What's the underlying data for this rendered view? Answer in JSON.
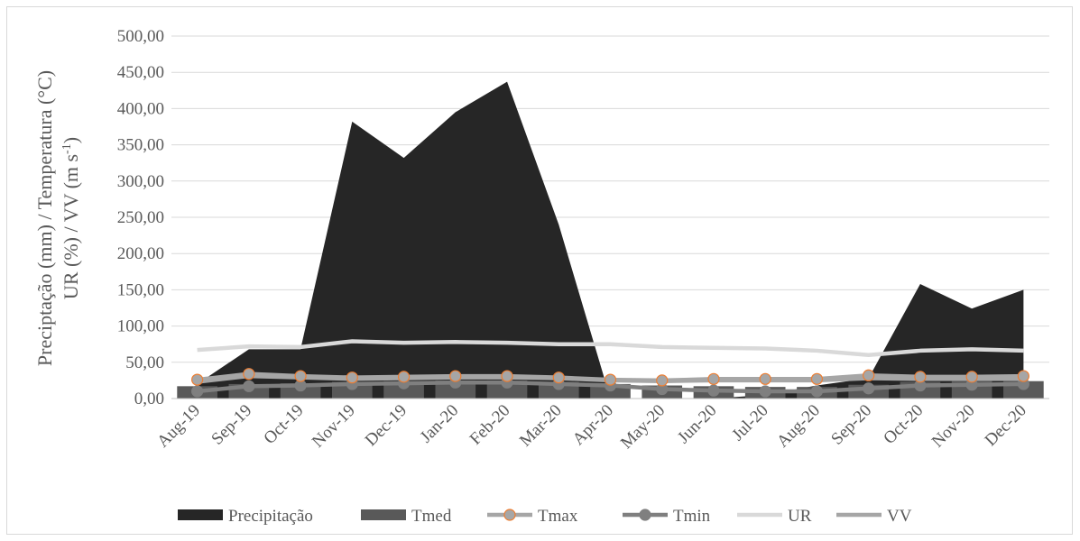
{
  "chart_data": {
    "type": "area",
    "ylabel_line1": "Preciptação (mm) / Temperatura (°C)",
    "ylabel_line2_prefix": "UR (%) / VV (m s",
    "ylabel_line2_sup": "-1",
    "ylabel_line2_suffix": ")",
    "ylim": [
      0,
      500
    ],
    "yticks": [
      0,
      50,
      100,
      150,
      200,
      250,
      300,
      350,
      400,
      450,
      500
    ],
    "ytick_labels": [
      "0,00",
      "50,00",
      "100,00",
      "150,00",
      "200,00",
      "250,00",
      "300,00",
      "350,00",
      "400,00",
      "450,00",
      "500,00"
    ],
    "categories": [
      "Aug-19",
      "Sep-19",
      "Oct-19",
      "Nov-19",
      "Dec-19",
      "Jan-20",
      "Feb-20",
      "Mar-20",
      "Apr-20",
      "May-20",
      "Jun-20",
      "Jul-20",
      "Aug-20",
      "Sep-20",
      "Oct-20",
      "Nov-20",
      "Dec-20"
    ],
    "grid": true,
    "legend_position": "bottom",
    "series": [
      {
        "name": "Precipitação",
        "kind": "area",
        "color": "#262626",
        "values": [
          20,
          68,
          68,
          382,
          332,
          395,
          437,
          240,
          0,
          0,
          0,
          5,
          18,
          28,
          158,
          124,
          150
        ]
      },
      {
        "name": "Tmed",
        "kind": "bar",
        "color": "#595959",
        "values": [
          17,
          20,
          21,
          23,
          24,
          25,
          25,
          23,
          20,
          18,
          17,
          16,
          16,
          19,
          23,
          24,
          24
        ]
      },
      {
        "name": "Tmax",
        "kind": "line",
        "color": "#a6a6a6",
        "marker": "circle",
        "marker_edge": "#ed7d31",
        "values": [
          26,
          34,
          31,
          29,
          30,
          31,
          31,
          29,
          26,
          25,
          27,
          27,
          27,
          32,
          30,
          30,
          31
        ]
      },
      {
        "name": "Tmin",
        "kind": "line",
        "color": "#7f7f7f",
        "marker": "circle",
        "marker_edge": "#7f7f7f",
        "values": [
          10,
          17,
          18,
          20,
          21,
          22,
          22,
          20,
          18,
          13,
          11,
          10,
          10,
          14,
          18,
          19,
          20
        ]
      },
      {
        "name": "UR",
        "kind": "line",
        "color": "#d9d9d9",
        "values": [
          67,
          72,
          71,
          79,
          77,
          78,
          77,
          75,
          75,
          71,
          70,
          69,
          66,
          60,
          66,
          68,
          66
        ]
      },
      {
        "name": "VV",
        "kind": "line",
        "color": "#a6a6a6",
        "values": [
          23,
          31,
          29,
          27,
          28,
          29,
          29,
          28,
          25,
          24,
          25,
          25,
          25,
          28,
          27,
          27,
          27
        ]
      }
    ]
  }
}
